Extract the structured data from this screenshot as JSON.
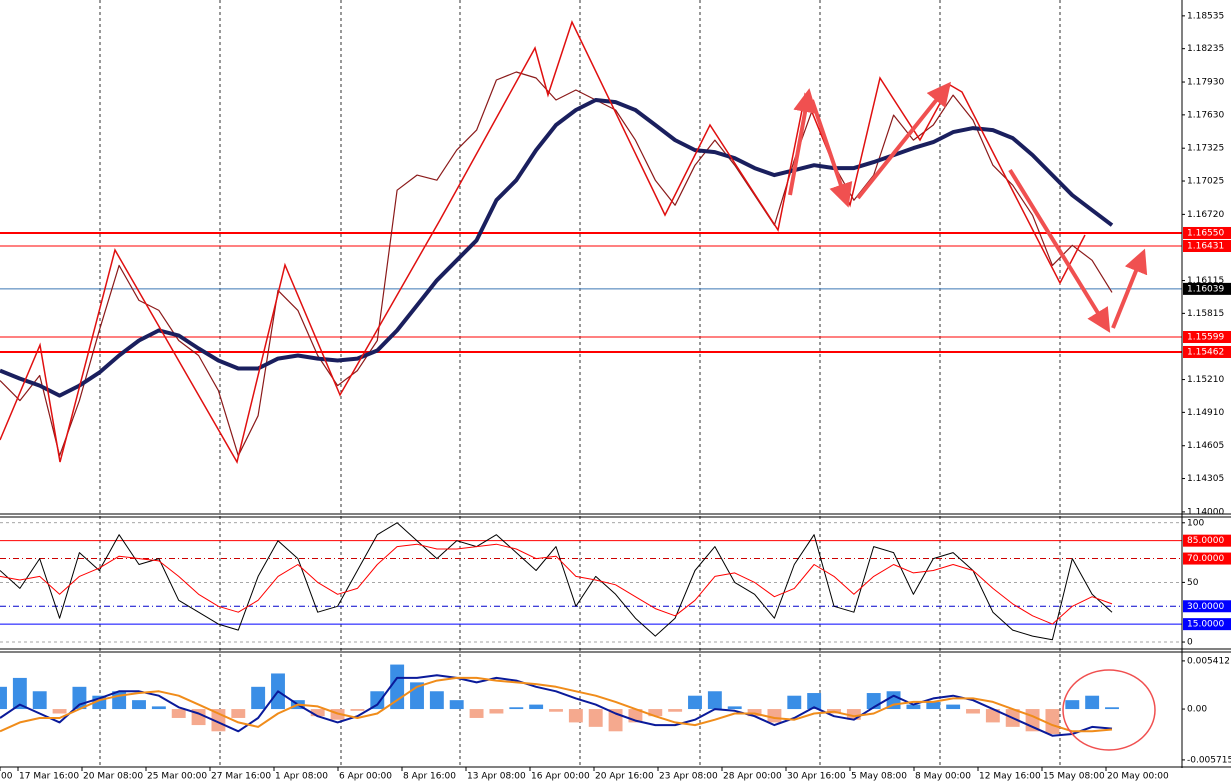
{
  "chart_data": [
    {
      "type": "line",
      "x_labels": [
        "00",
        "17 Mar 16:00",
        "20 Mar 08:00",
        "25 Mar 00:00",
        "27 Mar 16:00",
        "1 Apr 08:00",
        "6 Apr 00:00",
        "8 Apr 16:00",
        "13 Apr 08:00",
        "16 Apr 00:00",
        "20 Apr 16:00",
        "23 Apr 08:00",
        "28 Apr 00:00",
        "30 Apr 16:00",
        "5 May 08:00",
        "8 May 00:00",
        "12 May 16:00",
        "15 May 08:00",
        "20 May 00:00"
      ],
      "ylim": [
        1.1399,
        1.1868
      ],
      "yticks": [
        {
          "value": 1.18535,
          "label": "1.18535"
        },
        {
          "value": 1.18235,
          "label": "1.18235"
        },
        {
          "value": 1.1793,
          "label": "1.17930"
        },
        {
          "value": 1.1763,
          "label": "1.17630"
        },
        {
          "value": 1.17325,
          "label": "1.17325"
        },
        {
          "value": 1.17025,
          "label": "1.17025"
        },
        {
          "value": 1.1672,
          "label": "1.16720"
        },
        {
          "value": 1.16115,
          "label": "1.16115"
        },
        {
          "value": 1.15815,
          "label": "1.15815"
        },
        {
          "value": 1.1521,
          "label": "1.15210"
        },
        {
          "value": 1.1491,
          "label": "1.14910"
        },
        {
          "value": 1.14605,
          "label": "1.14605"
        },
        {
          "value": 1.14305,
          "label": "1.14305"
        },
        {
          "value": 1.14,
          "label": "1.14000"
        }
      ],
      "levels": [
        {
          "value": 1.1655,
          "label": "1.16550",
          "color": "#ff0000",
          "width": 2
        },
        {
          "value": 1.16431,
          "label": "1.16431",
          "color": "#ff0000",
          "width": 1
        },
        {
          "value": 1.16039,
          "label": "1.16039",
          "color": "#3c78b4",
          "box": "#000000",
          "width": 1
        },
        {
          "value": 1.15599,
          "label": "1.15599",
          "color": "#ff0000",
          "width": 1
        },
        {
          "value": 1.15462,
          "label": "1.15462",
          "color": "#ff0000",
          "width": 2
        }
      ],
      "series": [
        {
          "color": "#8b1a1a",
          "width": 1.2,
          "values": [
            1.15201,
            1.15018,
            1.15247,
            1.14514,
            1.15018,
            1.15659,
            1.16254,
            1.15934,
            1.15842,
            1.15567,
            1.1543,
            1.15109,
            1.14514,
            1.1488,
            1.16025,
            1.15842,
            1.1543,
            1.15155,
            1.15292,
            1.15567,
            1.16941,
            1.17079,
            1.17033,
            1.17308,
            1.17491,
            1.17949,
            1.18022,
            1.17967,
            1.17766,
            1.17857,
            1.17766,
            1.17674,
            1.17399,
            1.17033,
            1.16804,
            1.1717,
            1.17399,
            1.1717,
            1.16895,
            1.16621,
            1.17216,
            1.1772,
            1.1717,
            1.1685,
            1.17079,
            1.17628,
            1.17399,
            1.17537,
            1.17811,
            1.17582,
            1.1717,
            1.16987,
            1.16712,
            1.16254,
            1.16437,
            1.163,
            1.16007
          ]
        },
        {
          "color": "#1a1f5e",
          "width": 4,
          "values": [
            1.15292,
            1.15219,
            1.15155,
            1.15063,
            1.15155,
            1.15274,
            1.1543,
            1.15567,
            1.15659,
            1.15613,
            1.15494,
            1.15384,
            1.15311,
            1.15311,
            1.15402,
            1.1543,
            1.15402,
            1.15384,
            1.15402,
            1.15476,
            1.15659,
            1.15888,
            1.16117,
            1.163,
            1.16483,
            1.1685,
            1.17033,
            1.17308,
            1.17537,
            1.17674,
            1.17766,
            1.17747,
            1.17674,
            1.17537,
            1.17399,
            1.17308,
            1.17289,
            1.17234,
            1.17143,
            1.17079,
            1.17124,
            1.1717,
            1.17143,
            1.17143,
            1.17198,
            1.17262,
            1.17326,
            1.17381,
            1.17472,
            1.17509,
            1.17491,
            1.17417,
            1.17262,
            1.17079,
            1.16895,
            1.16758,
            1.16621
          ]
        }
      ]
    },
    {
      "type": "line",
      "ylim": [
        -5,
        104
      ],
      "yticks": [
        100,
        50,
        0
      ],
      "levels": [
        {
          "value": 85,
          "label": "85.0000",
          "color": "#ff0000",
          "box": "#ff0000",
          "dash": "none"
        },
        {
          "value": 70,
          "label": "70.0000",
          "color": "#cc0000",
          "box": "#ff0000",
          "dash": "6 3 1 3"
        },
        {
          "value": 30,
          "label": "30.0000",
          "color": "#0000cc",
          "box": "#0000ff",
          "dash": "6 3 1 3"
        },
        {
          "value": 15,
          "label": "15.0000",
          "color": "#0000ff",
          "box": "#0000ff",
          "dash": "none"
        }
      ],
      "series": [
        {
          "color": "#000000",
          "width": 1,
          "values": [
            60,
            45,
            70,
            20,
            75,
            60,
            90,
            65,
            70,
            35,
            25,
            15,
            10,
            55,
            85,
            70,
            25,
            30,
            60,
            90,
            100,
            85,
            70,
            85,
            80,
            90,
            75,
            60,
            80,
            30,
            55,
            40,
            20,
            5,
            20,
            60,
            80,
            50,
            40,
            20,
            65,
            90,
            30,
            25,
            80,
            75,
            40,
            70,
            75,
            60,
            25,
            10,
            5,
            2,
            70,
            40,
            25
          ]
        },
        {
          "color": "#ff0000",
          "width": 1,
          "values": [
            55,
            52,
            55,
            40,
            55,
            62,
            72,
            70,
            68,
            55,
            40,
            30,
            25,
            35,
            55,
            65,
            50,
            40,
            45,
            65,
            80,
            82,
            78,
            78,
            80,
            82,
            78,
            70,
            72,
            55,
            52,
            48,
            38,
            28,
            22,
            35,
            55,
            58,
            50,
            38,
            45,
            65,
            55,
            40,
            55,
            65,
            58,
            60,
            65,
            60,
            45,
            32,
            22,
            15,
            30,
            38,
            32
          ]
        }
      ]
    },
    {
      "type": "macd",
      "ylim": [
        -0.0064,
        0.0063
      ],
      "yticks": [
        0.0054121,
        {
          "value": 0,
          "label": "0.00"
        },
        -0.0057154
      ],
      "bar_colors": [
        "#3a8ee6",
        "#f5a98e"
      ],
      "bars": [
        0.0025,
        0.0035,
        0.002,
        -0.0005,
        0.0025,
        0.0015,
        0.002,
        0.001,
        0.0003,
        -0.001,
        -0.0018,
        -0.0025,
        -0.001,
        0.0025,
        0.004,
        0.001,
        -0.0008,
        -0.0012,
        -0.0002,
        0.002,
        0.005,
        0.003,
        0.002,
        0.001,
        -0.001,
        -0.0005,
        0.0002,
        0.0005,
        -0.0003,
        -0.0015,
        -0.002,
        -0.0025,
        -0.0015,
        -0.0008,
        -0.0003,
        0.0015,
        0.002,
        0.0003,
        -0.0008,
        -0.0015,
        0.0015,
        0.0018,
        -0.0005,
        -0.0012,
        0.0018,
        0.002,
        0.0005,
        0.0008,
        0.0005,
        -0.0005,
        -0.0015,
        -0.002,
        -0.0025,
        -0.0028,
        0.001,
        0.0015,
        0.0002
      ],
      "series": [
        {
          "color": "#0a1a9a",
          "width": 2,
          "values": [
            -0.001,
            0.0005,
            -0.0005,
            -0.0015,
            0.0005,
            0.0012,
            0.002,
            0.002,
            0.0015,
            0.0002,
            -0.0005,
            -0.0015,
            -0.0025,
            -0.001,
            0.002,
            0.0005,
            -0.0008,
            -0.0015,
            -0.0008,
            0.0005,
            0.0035,
            0.0035,
            0.0038,
            0.0035,
            0.003,
            0.0035,
            0.0032,
            0.0025,
            0.002,
            0.0012,
            0.0005,
            -0.0005,
            -0.0013,
            -0.0018,
            -0.0018,
            -0.0012,
            0,
            -0.0002,
            -0.0008,
            -0.0018,
            -0.001,
            0.0002,
            -0.0008,
            -0.0012,
            0.0002,
            0.0015,
            0.0005,
            0.0012,
            0.0015,
            0.001,
            0,
            -0.001,
            -0.002,
            -0.003,
            -0.0028,
            -0.002,
            -0.0022
          ]
        },
        {
          "color": "#f08c1a",
          "width": 2,
          "values": [
            -0.0025,
            -0.0015,
            -0.001,
            -0.001,
            0,
            0.001,
            0.0015,
            0.0018,
            0.002,
            0.0015,
            0.0005,
            -0.0005,
            -0.0015,
            -0.002,
            -0.0005,
            0.0005,
            0.0003,
            -0.0005,
            -0.001,
            -0.0005,
            0.001,
            0.0025,
            0.0032,
            0.0035,
            0.0035,
            0.0032,
            0.003,
            0.0028,
            0.0025,
            0.002,
            0.0015,
            0.0008,
            0,
            -0.0008,
            -0.0015,
            -0.0018,
            -0.0012,
            -0.0005,
            -0.0005,
            -0.001,
            -0.0012,
            -0.0005,
            -0.0003,
            -0.0008,
            -0.0005,
            0.0005,
            0.0008,
            0.0008,
            0.0012,
            0.0012,
            0.0008,
            0,
            -0.0008,
            -0.0018,
            -0.0025,
            -0.0025,
            -0.0023
          ]
        }
      ]
    }
  ]
}
